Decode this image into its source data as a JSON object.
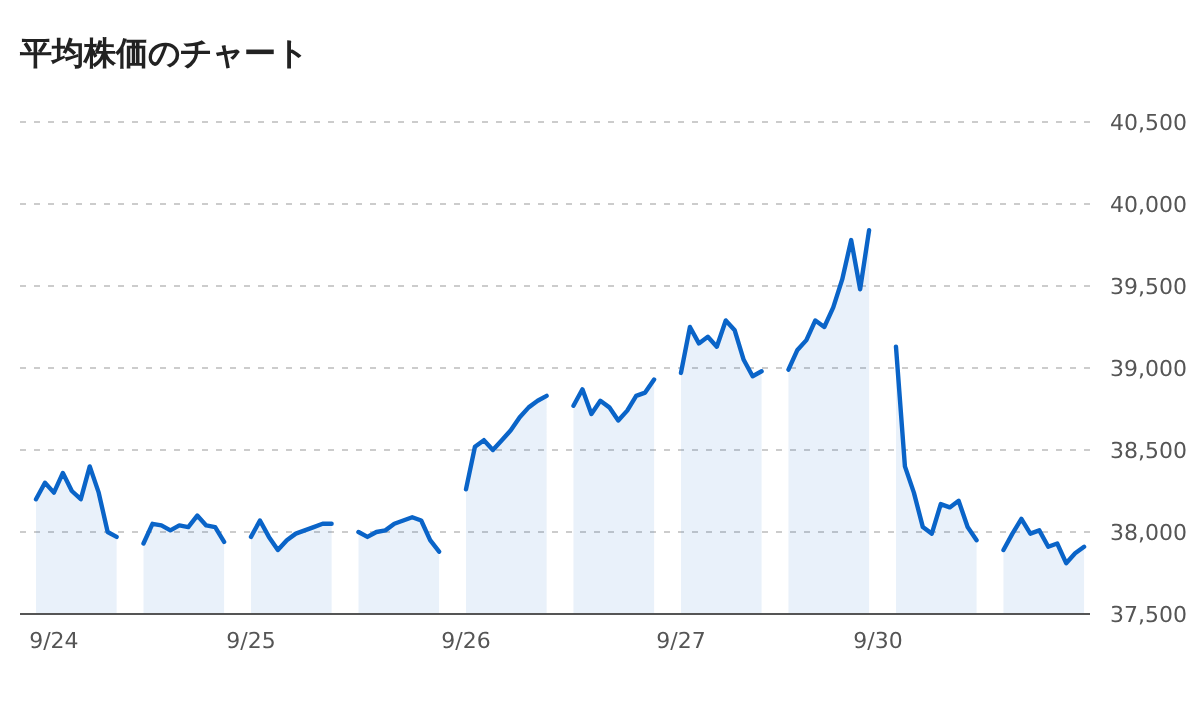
{
  "chart_data": {
    "type": "area",
    "title": "平均株価のチャート",
    "categories": [
      null,
      null,
      "9/24",
      null,
      null,
      null,
      null,
      null,
      null,
      null,
      null,
      null,
      null,
      null,
      null,
      null,
      null,
      null,
      null,
      null,
      null,
      null,
      null,
      null,
      "9/25",
      null,
      null,
      null,
      null,
      null,
      null,
      null,
      null,
      null,
      null,
      null,
      null,
      null,
      null,
      null,
      null,
      null,
      null,
      null,
      null,
      null,
      null,
      null,
      "9/26",
      null,
      null,
      null,
      null,
      null,
      null,
      null,
      null,
      null,
      null,
      null,
      null,
      null,
      null,
      null,
      null,
      null,
      null,
      null,
      null,
      null,
      null,
      null,
      "9/27",
      null,
      null,
      null,
      null,
      null,
      null,
      null,
      null,
      null,
      null,
      null,
      null,
      null,
      null,
      null,
      null,
      null,
      null,
      null,
      null,
      null,
      "9/30",
      null,
      null,
      null,
      null,
      null,
      null,
      null,
      null,
      null,
      null,
      null,
      null,
      null,
      null,
      null,
      null,
      null,
      null,
      null,
      null,
      null,
      null,
      null,
      null,
      null
    ],
    "series": [
      {
        "color": "#0a64c8",
        "values": [
          38200,
          38300,
          38240,
          38360,
          38250,
          38200,
          38400,
          38240,
          38000,
          37970,
          null,
          null,
          37930,
          38050,
          38040,
          38010,
          38040,
          38030,
          38100,
          38040,
          38030,
          37940,
          null,
          null,
          37970,
          38070,
          37970,
          37890,
          37950,
          37990,
          38010,
          38030,
          38050,
          38050,
          null,
          null,
          38000,
          37970,
          38000,
          38010,
          38050,
          38070,
          38090,
          38070,
          37950,
          37880,
          null,
          null,
          38260,
          38520,
          38560,
          38500,
          38560,
          38620,
          38700,
          38760,
          38800,
          38830,
          null,
          null,
          38770,
          38870,
          38720,
          38800,
          38760,
          38680,
          38740,
          38830,
          38850,
          38930,
          null,
          null,
          38970,
          39250,
          39150,
          39190,
          39130,
          39290,
          39230,
          39050,
          38950,
          38980,
          null,
          null,
          38990,
          39110,
          39170,
          39290,
          39250,
          39370,
          39540,
          39780,
          39480,
          39840,
          null,
          null,
          39130,
          38400,
          38240,
          38030,
          37990,
          38170,
          38150,
          38190,
          38030,
          37950,
          null,
          null,
          37890,
          37990,
          38080,
          37990,
          38010,
          37910,
          37930,
          37810,
          37870,
          37910,
          null,
          null
        ]
      }
    ],
    "ylim": [
      37500,
      40500
    ],
    "yticks": [
      {
        "value": 37500,
        "label": "37,500"
      },
      {
        "value": 38000,
        "label": "38,000"
      },
      {
        "value": 38500,
        "label": "38,500"
      },
      {
        "value": 39000,
        "label": "39,000"
      },
      {
        "value": 39500,
        "label": "39,500"
      },
      {
        "value": 40000,
        "label": "40,000"
      },
      {
        "value": 40500,
        "label": "40,500"
      }
    ],
    "grid": "y",
    "legend": false,
    "line_style": "solid",
    "marker": "none"
  }
}
